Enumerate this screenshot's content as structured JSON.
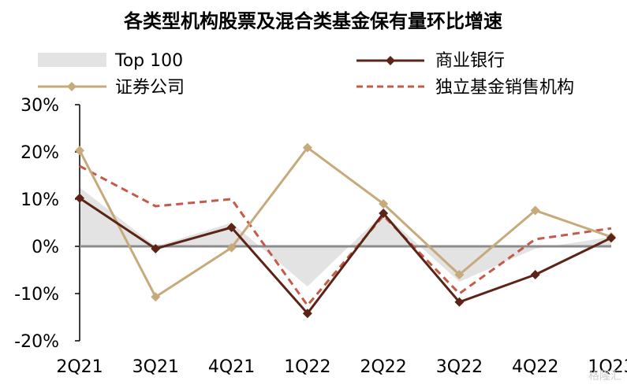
{
  "chart_data": {
    "type": "line",
    "title": "各类型机构股票及混合类基金保有量环比增速",
    "xlabel": "",
    "ylabel": "",
    "ylim": [
      -20,
      30
    ],
    "yticks": [
      -20,
      -10,
      0,
      10,
      20,
      30
    ],
    "ytick_labels": [
      "-20%",
      "-10%",
      "0%",
      "10%",
      "20%",
      "30%"
    ],
    "categories": [
      "2Q21",
      "3Q21",
      "4Q21",
      "1Q22",
      "2Q22",
      "3Q22",
      "4Q22",
      "1Q23"
    ],
    "grid": false,
    "legend_position": "top",
    "series": [
      {
        "name": "Top 100",
        "kind": "area",
        "color": "#e3e3e3",
        "values": [
          12.5,
          0,
          5,
          -8.5,
          7,
          -7.5,
          -0.5,
          2
        ]
      },
      {
        "name": "商业银行",
        "kind": "line",
        "color": "#5b2416",
        "marker": "diamond",
        "values": [
          10.2,
          -0.5,
          4,
          -14.2,
          7,
          -11.8,
          -6,
          1.8
        ]
      },
      {
        "name": "证券公司",
        "kind": "line",
        "color": "#c7aa7b",
        "marker": "diamond",
        "values": [
          20.3,
          -10.7,
          -0.3,
          20.9,
          9,
          -6,
          7.6,
          2
        ]
      },
      {
        "name": "独立基金销售机构",
        "kind": "dashed",
        "color": "#c55a48",
        "values": [
          17,
          8.5,
          10,
          -12.5,
          6.5,
          -10,
          1.5,
          3.8
        ]
      }
    ]
  },
  "watermark": "格隆汇"
}
